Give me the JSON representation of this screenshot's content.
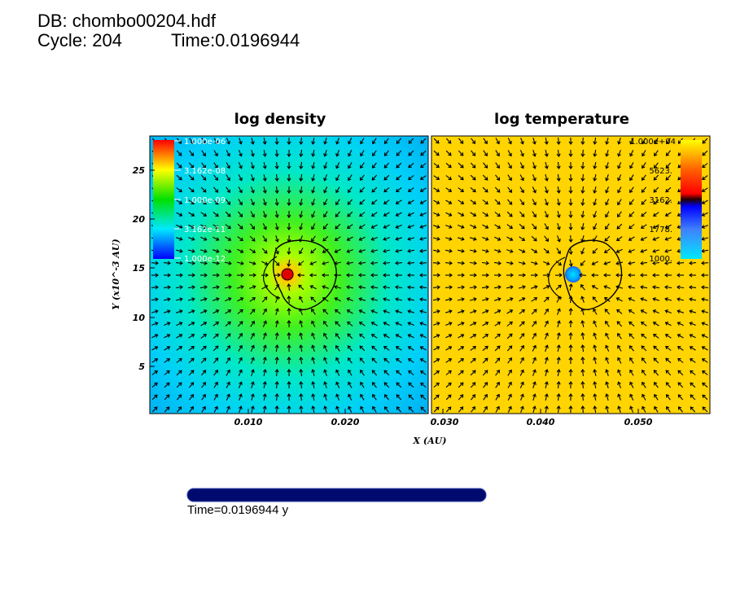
{
  "header": {
    "db_line": "DB: chombo00204.hdf",
    "cycle_line": "Cycle: 204",
    "time_line": "Time:0.0196944"
  },
  "time_bar": {
    "caption": "Time=0.0196944 y",
    "progress": 1.0,
    "color": "#000a6e"
  },
  "chart_data": [
    {
      "type": "heatmap",
      "title": "log density",
      "xlabel": "X (AU)",
      "ylabel": "Y (x10^-3 AU)",
      "x_ticks": [
        "0.010",
        "0.020"
      ],
      "y_ticks": [
        "5",
        "10",
        "15",
        "20",
        "25"
      ],
      "colorbar": {
        "labels": [
          "1.000e-06",
          "3.162e-08",
          "1.000e-09",
          "3.162e-11",
          "1.000e-12"
        ],
        "colors": [
          "#ff0000",
          "#ffff00",
          "#00e000",
          "#00e0ff",
          "#0000ff"
        ]
      },
      "overlay": "velocity vectors + contour"
    },
    {
      "type": "heatmap",
      "title": "log temperature",
      "xlabel": "X (AU)",
      "ylabel": "",
      "x_ticks": [
        "0.030",
        "0.040",
        "0.050"
      ],
      "colorbar": {
        "labels": [
          "1.000e+04",
          "5623.",
          "3162.",
          "1778.",
          "1000."
        ],
        "colors": [
          "#ffff00",
          "#ff4000",
          "#200000",
          "#2020ff",
          "#00e0ff"
        ]
      },
      "overlay": "velocity vectors + contour"
    }
  ]
}
